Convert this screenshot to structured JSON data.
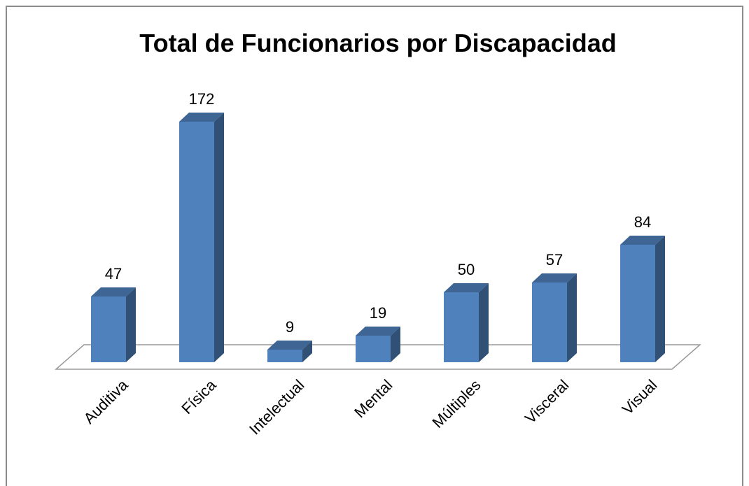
{
  "chart_data": {
    "type": "bar3d",
    "title": "Total de Funcionarios por Discapacidad",
    "categories": [
      "Auditiva",
      "Física",
      "Intelectual",
      "Mental",
      "Múltiples",
      "Visceral",
      "Visual"
    ],
    "values": [
      47,
      172,
      9,
      19,
      50,
      57,
      84
    ],
    "color": "#4f81bd"
  }
}
